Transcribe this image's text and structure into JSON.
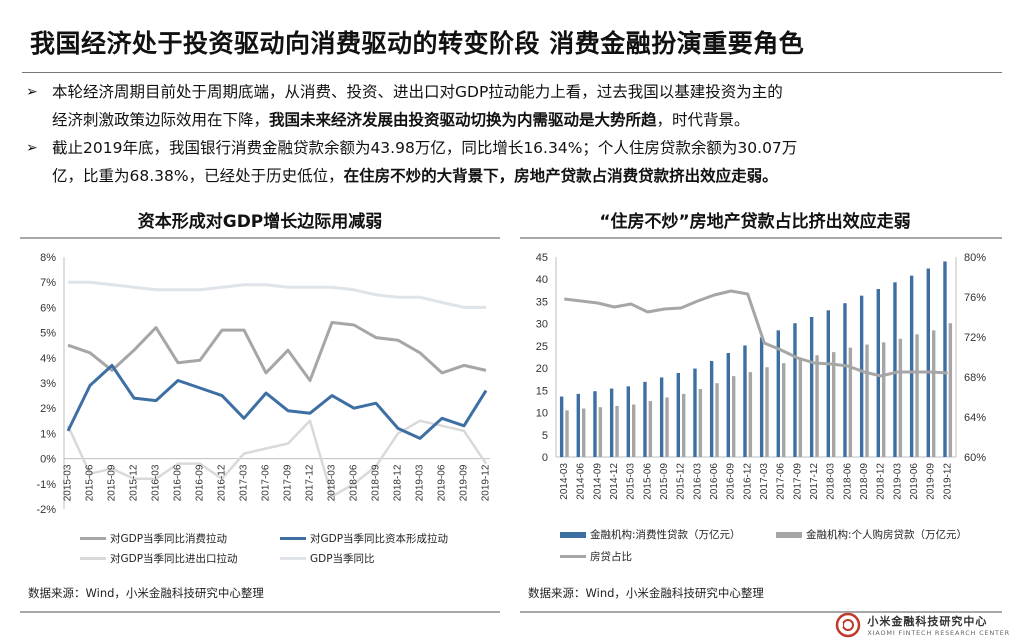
{
  "header": {
    "title": "我国经济处于投资驱动向消费驱动的转变阶段 消费金融扮演重要角色"
  },
  "bullets": [
    {
      "mark": "➢",
      "line1": "本轮经济周期目前处于周期底端，从消费、投资、进出口对GDP拉动能力上看，过去我国以基建投资为主的",
      "line2_a": "经济刺激政策边际效用在下降，",
      "line2_b": "我国未来经济发展由投资驱动切换为内需驱动是大势所趋",
      "line2_c": "，时代背景。"
    },
    {
      "mark": "➢",
      "line1": "截止2019年底，我国银行消费金融贷款余额为43.98万亿，同比增长16.34%；个人住房贷款余额为30.07万",
      "line2_a": "亿，比重为68.38%，已经处于历史低位，",
      "line2_b": "在住房不炒的大背景下，房地产贷款占消费贷款挤出效应走弱。",
      "line2_c": ""
    }
  ],
  "left_chart": {
    "title": "资本形成对GDP增长边际用减弱",
    "source": "数据来源：Wind，小米金融科技研究中心整理",
    "colors": {
      "consumption": "#a6a6a6",
      "investment": "#3d6fa3",
      "export": "#d9d9d9",
      "gdp": "#dfe3ea"
    }
  },
  "right_chart": {
    "title": "“住房不炒”房地产贷款占比挤出效应走弱",
    "source": "数据来源：Wind，小米金融科技研究中心整理",
    "colors": {
      "consumer_loans": "#3d6fa3",
      "housing_loans": "#a6a6a6",
      "ratio": "#a6a6a6"
    }
  },
  "chart_data": [
    {
      "type": "line",
      "title": "资本形成对GDP增长边际用减弱",
      "x": [
        "2015-03",
        "2015-06",
        "2015-09",
        "2015-12",
        "2016-03",
        "2016-06",
        "2016-09",
        "2016-12",
        "2017-03",
        "2017-06",
        "2017-09",
        "2017-12",
        "2018-03",
        "2018-06",
        "2018-09",
        "2018-12",
        "2019-03",
        "2019-06",
        "2019-09",
        "2019-12"
      ],
      "ylim": [
        -2,
        8
      ],
      "yticks": [
        "-2%",
        "-1%",
        "0%",
        "1%",
        "2%",
        "3%",
        "4%",
        "5%",
        "6%",
        "7%",
        "8%"
      ],
      "series": [
        {
          "name": "对GDP当季同比消费拉动",
          "values": [
            4.5,
            4.2,
            3.5,
            4.3,
            5.2,
            3.8,
            3.9,
            5.1,
            5.1,
            3.4,
            4.3,
            3.1,
            5.4,
            5.3,
            4.8,
            4.7,
            4.2,
            3.4,
            3.7,
            3.5
          ]
        },
        {
          "name": "对GDP当季同比资本形成拉动",
          "values": [
            1.1,
            2.9,
            3.7,
            2.4,
            2.3,
            3.1,
            2.8,
            2.5,
            1.6,
            2.6,
            1.9,
            1.8,
            2.5,
            2.0,
            2.2,
            1.2,
            0.8,
            1.6,
            1.3,
            2.7
          ]
        },
        {
          "name": "对GDP当季同比进出口拉动",
          "values": [
            1.3,
            -0.6,
            -0.4,
            -0.8,
            -0.8,
            -0.2,
            -0.2,
            -0.8,
            0.2,
            0.4,
            0.6,
            1.5,
            -1.5,
            -1.0,
            -0.3,
            1.0,
            1.5,
            1.3,
            1.1,
            -0.2
          ]
        },
        {
          "name": "GDP当季同比",
          "values": [
            7.0,
            7.0,
            6.9,
            6.8,
            6.7,
            6.7,
            6.7,
            6.8,
            6.9,
            6.9,
            6.8,
            6.8,
            6.8,
            6.7,
            6.5,
            6.4,
            6.4,
            6.2,
            6.0,
            6.0
          ]
        }
      ]
    },
    {
      "type": "bar",
      "title": "“住房不炒”房地产贷款占比挤出效应走弱",
      "categories": [
        "2014-03",
        "2014-06",
        "2014-09",
        "2014-12",
        "2015-03",
        "2015-06",
        "2015-09",
        "2015-12",
        "2016-03",
        "2016-06",
        "2016-09",
        "2016-12",
        "2017-03",
        "2017-06",
        "2017-09",
        "2017-12",
        "2018-03",
        "2018-06",
        "2018-09",
        "2018-12",
        "2019-03",
        "2019-06",
        "2019-09",
        "2019-12"
      ],
      "ylim": [
        0,
        45
      ],
      "yticks": [
        "0",
        "5",
        "10",
        "15",
        "20",
        "25",
        "30",
        "35",
        "40",
        "45"
      ],
      "y2lim": [
        60,
        80
      ],
      "y2ticks": [
        "60%",
        "64%",
        "68%",
        "72%",
        "76%",
        "80%"
      ],
      "series": [
        {
          "name": "金融机构:消费性贷款（万亿元）",
          "values": [
            13.6,
            14.2,
            14.8,
            15.4,
            15.9,
            16.9,
            17.9,
            18.9,
            19.9,
            21.6,
            23.4,
            25.1,
            26.9,
            28.5,
            30.1,
            31.5,
            33.0,
            34.6,
            36.3,
            37.8,
            39.3,
            40.8,
            42.4,
            44.0
          ]
        },
        {
          "name": "金融机构:个人购房贷款（万亿元）",
          "values": [
            10.5,
            10.9,
            11.2,
            11.5,
            11.8,
            12.6,
            13.4,
            14.2,
            15.3,
            16.6,
            18.2,
            19.1,
            20.2,
            21.1,
            21.9,
            22.9,
            23.6,
            24.6,
            25.3,
            25.8,
            26.6,
            27.6,
            28.5,
            30.1
          ]
        },
        {
          "name": "房贷占比",
          "values": [
            75.8,
            75.6,
            75.4,
            75.0,
            75.3,
            74.5,
            74.8,
            74.9,
            75.6,
            76.2,
            76.6,
            76.3,
            71.4,
            70.7,
            69.9,
            69.4,
            69.3,
            69.1,
            68.5,
            68.1,
            68.5,
            68.5,
            68.5,
            68.4
          ]
        }
      ]
    }
  ],
  "footer": {
    "brand_cn": "小米金融科技研究中心",
    "brand_en": "XIAOMI FINTECH RESEARCH CENTER"
  }
}
